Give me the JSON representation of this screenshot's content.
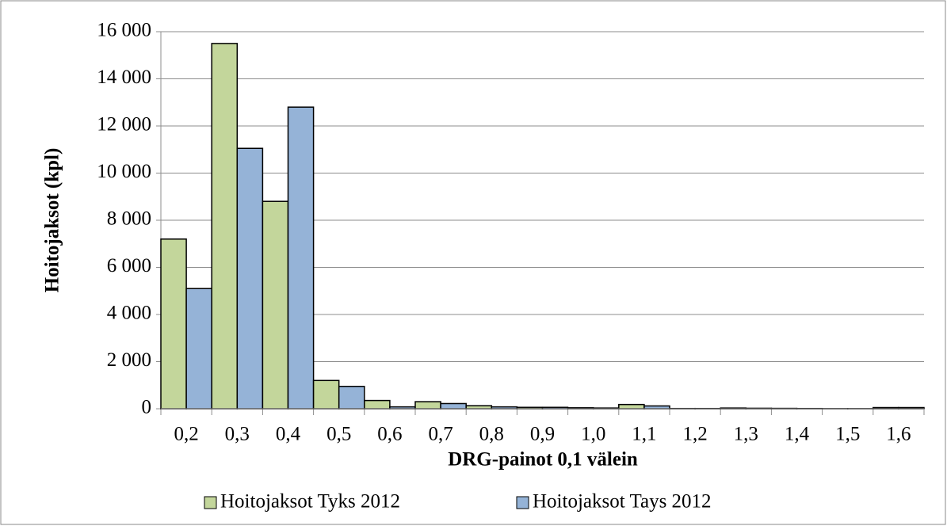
{
  "chart_data": {
    "type": "bar",
    "x_label": "DRG-painot 0,1 välein",
    "y_label": "Hoitojaksot (kpl)",
    "categories": [
      "0,2",
      "0,3",
      "0,4",
      "0,5",
      "0,6",
      "0,7",
      "0,8",
      "0,9",
      "1,0",
      "1,1",
      "1,2",
      "1,3",
      "1,4",
      "1,5",
      "1,6"
    ],
    "series": [
      {
        "name": "Hoitojaksot Tyks 2012",
        "color": "#c3d69b",
        "values": [
          7200,
          15500,
          8800,
          1200,
          350,
          300,
          130,
          60,
          40,
          180,
          10,
          30,
          15,
          5,
          50
        ]
      },
      {
        "name": "Hoitojaksot Tays 2012",
        "color": "#95b3d7",
        "values": [
          5100,
          11050,
          12800,
          950,
          80,
          220,
          80,
          60,
          30,
          120,
          10,
          20,
          10,
          5,
          50
        ]
      }
    ],
    "ylim": [
      0,
      16000
    ],
    "yticks": [
      0,
      {
        "value": 2000,
        "label": "2 000"
      },
      {
        "value": 4000,
        "label": "4 000"
      },
      {
        "value": 6000,
        "label": "6 000"
      },
      {
        "value": 8000,
        "label": "8 000"
      },
      {
        "value": 10000,
        "label": "10 000"
      },
      {
        "value": 12000,
        "label": "12 000"
      },
      {
        "value": 14000,
        "label": "14 000"
      },
      {
        "value": 16000,
        "label": "16 000"
      }
    ],
    "grid": true,
    "legend": "bottom"
  }
}
